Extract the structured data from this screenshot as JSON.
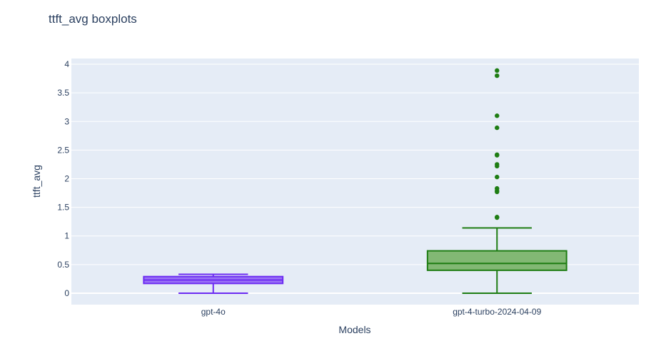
{
  "chart_data": {
    "type": "box",
    "title": "ttft_avg boxplots",
    "xlabel": "Models",
    "ylabel": "ttft_avg",
    "ylim": [
      -0.2,
      4.1
    ],
    "yticks": [
      0,
      0.5,
      1,
      1.5,
      2,
      2.5,
      3,
      3.5,
      4
    ],
    "ytick_labels": [
      "0",
      "0.5",
      "1",
      "1.5",
      "2",
      "2.5",
      "3",
      "3.5",
      "4"
    ],
    "grid": true,
    "categories": [
      "gpt-4o",
      "gpt-4-turbo-2024-04-09"
    ],
    "boxes": [
      {
        "category": "gpt-4o",
        "color": "#6c2bf2",
        "fill": "#9a73f5",
        "min": 0,
        "q1": 0.17,
        "median": 0.23,
        "q3": 0.29,
        "max": 0.33,
        "outliers": []
      },
      {
        "category": "gpt-4-turbo-2024-04-09",
        "color": "#1e7d13",
        "fill": "#82b874",
        "min": 0,
        "q1": 0.4,
        "median": 0.52,
        "q3": 0.74,
        "max": 1.14,
        "outliers": [
          1.32,
          1.33,
          1.77,
          1.79,
          1.83,
          2.03,
          2.22,
          2.25,
          2.41,
          2.42,
          2.89,
          3.1,
          3.8,
          3.89
        ]
      }
    ],
    "colors": {
      "plot_bg": "#e5ecf6",
      "grid": "#ffffff",
      "text": "#2a3f5f"
    }
  }
}
